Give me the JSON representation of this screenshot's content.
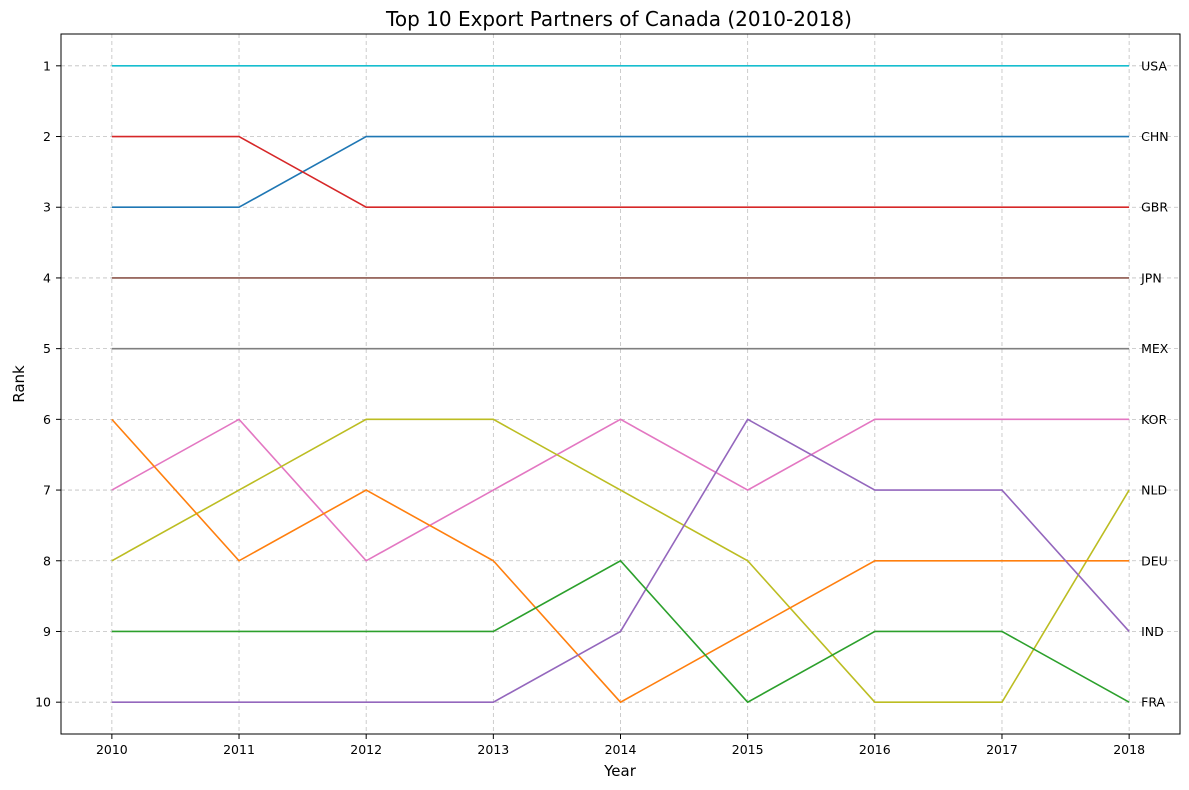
{
  "chart_data": {
    "type": "line",
    "title": "Top 10 Export Partners of Canada (2010-2018)",
    "xlabel": "Year",
    "ylabel": "Rank",
    "x": [
      2010,
      2011,
      2012,
      2013,
      2014,
      2015,
      2016,
      2017,
      2018
    ],
    "xlim": [
      2009.6,
      2018.4
    ],
    "ylim": [
      10.45,
      0.55
    ],
    "y_inverted": true,
    "yticks": [
      1,
      2,
      3,
      4,
      5,
      6,
      7,
      8,
      9,
      10
    ],
    "grid": true,
    "labels_at_line_end": true,
    "series": [
      {
        "name": "USA",
        "color": "#17becf",
        "values": [
          1,
          1,
          1,
          1,
          1,
          1,
          1,
          1,
          1
        ]
      },
      {
        "name": "CHN",
        "color": "#1f77b4",
        "values": [
          3,
          3,
          2,
          2,
          2,
          2,
          2,
          2,
          2
        ]
      },
      {
        "name": "GBR",
        "color": "#d62728",
        "values": [
          2,
          2,
          3,
          3,
          3,
          3,
          3,
          3,
          3
        ]
      },
      {
        "name": "JPN",
        "color": "#8c564b",
        "values": [
          4,
          4,
          4,
          4,
          4,
          4,
          4,
          4,
          4
        ]
      },
      {
        "name": "MEX",
        "color": "#7f7f7f",
        "values": [
          5,
          5,
          5,
          5,
          5,
          5,
          5,
          5,
          5
        ]
      },
      {
        "name": "KOR",
        "color": "#e377c2",
        "values": [
          7,
          6,
          8,
          7,
          6,
          7,
          6,
          6,
          6
        ]
      },
      {
        "name": "NLD",
        "color": "#bcbd22",
        "values": [
          8,
          7,
          6,
          6,
          7,
          8,
          10,
          10,
          7
        ]
      },
      {
        "name": "DEU",
        "color": "#ff7f0e",
        "values": [
          6,
          8,
          7,
          8,
          10,
          9,
          8,
          8,
          8
        ]
      },
      {
        "name": "IND",
        "color": "#9467bd",
        "values": [
          10,
          10,
          10,
          10,
          9,
          6,
          7,
          7,
          9
        ]
      },
      {
        "name": "FRA",
        "color": "#2ca02c",
        "values": [
          9,
          9,
          9,
          9,
          8,
          10,
          9,
          9,
          10
        ]
      }
    ]
  }
}
